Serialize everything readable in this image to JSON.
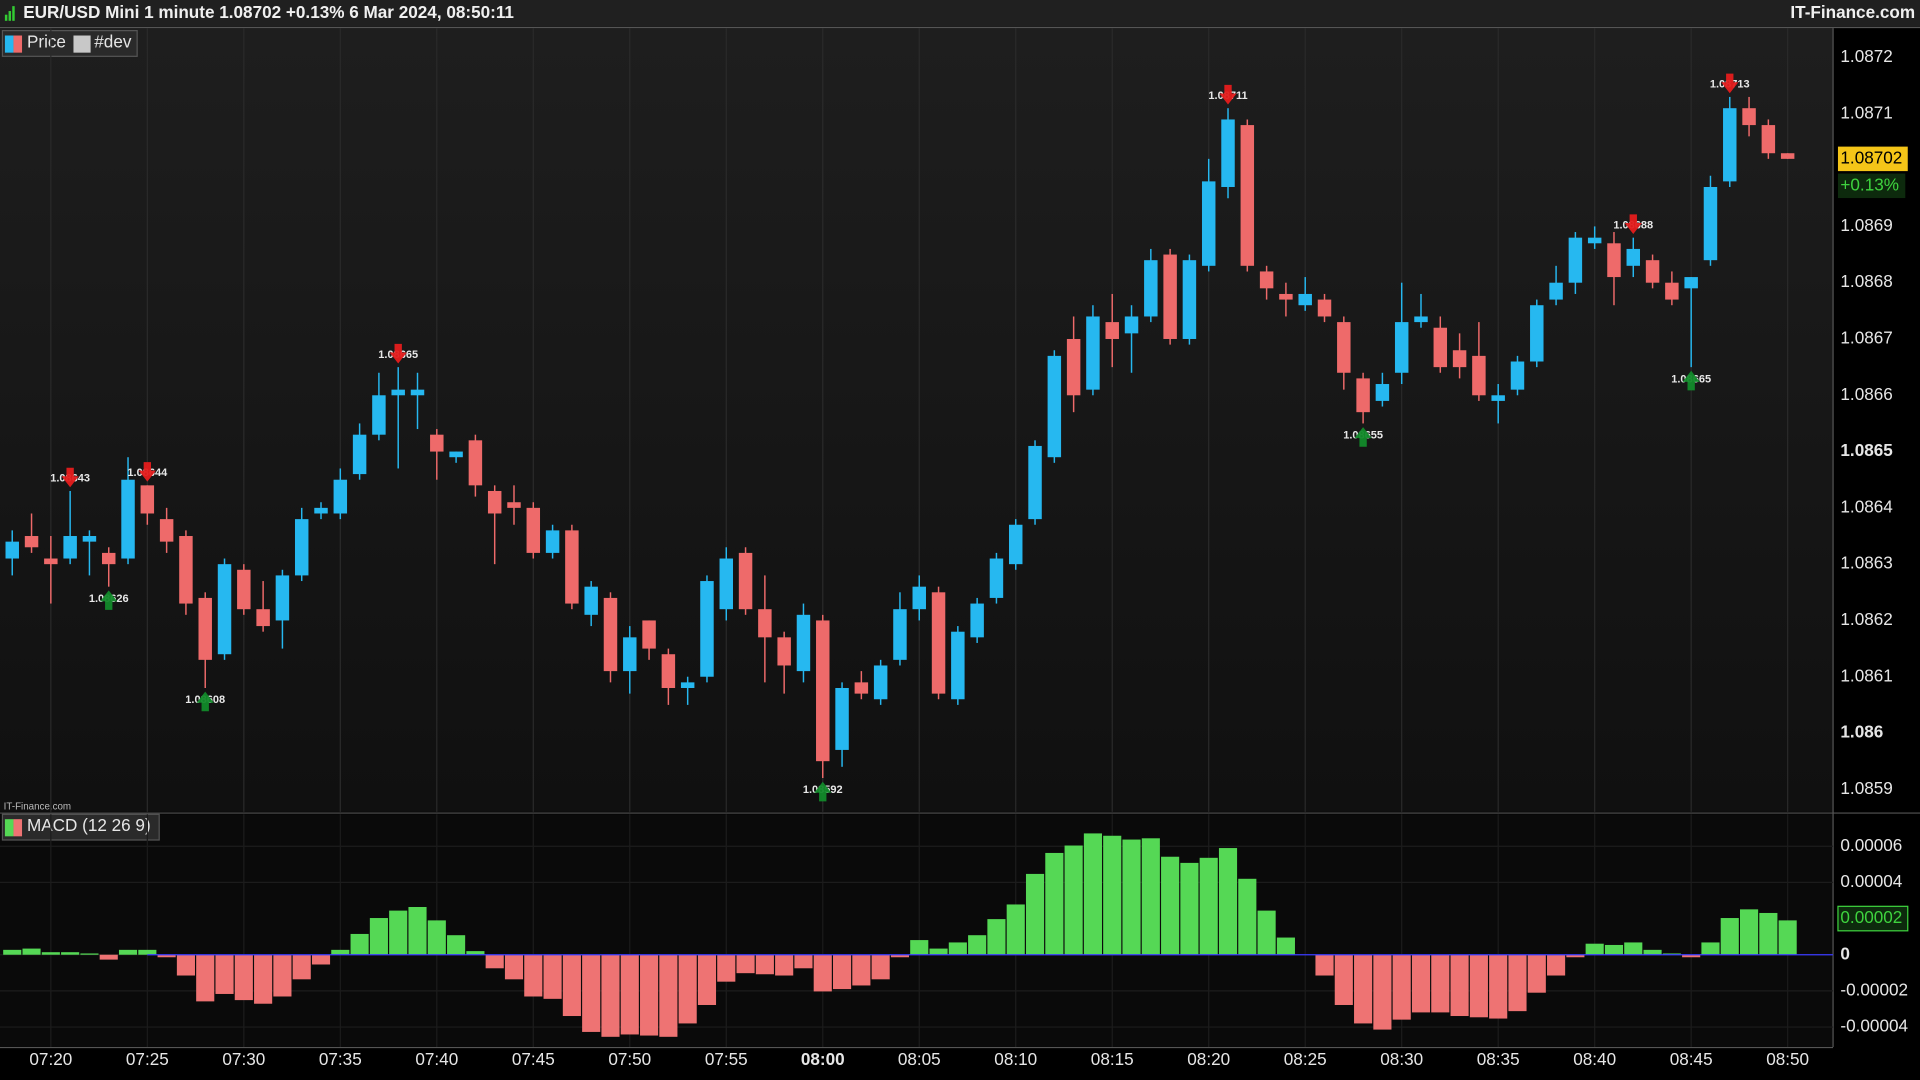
{
  "header": {
    "title": "EUR/USD Mini 1 minute 1.08702 +0.13% 6 Mar 2024, 08:50:11",
    "brand": "IT-Finance.com"
  },
  "chart_data": [
    {
      "type": "candlestick",
      "ylim": [
        1.08586,
        1.08725
      ],
      "yticks": [
        1.0859,
        1.086,
        1.0861,
        1.0862,
        1.0863,
        1.0864,
        1.0865,
        1.0866,
        1.0867,
        1.0868,
        1.0869,
        1.0871,
        1.0872
      ],
      "grid": true,
      "series": [
        {
          "name": "Price",
          "up_color": "#26b8f0",
          "down_color": "#ee6a6a",
          "open": [
            1.08631,
            1.08635,
            1.08631,
            1.08631,
            1.08634,
            1.08632,
            1.08631,
            1.08644,
            1.08638,
            1.08635,
            1.08624,
            1.08614,
            1.08629,
            1.08622,
            1.0862,
            1.08628,
            1.08639,
            1.08639,
            1.08646,
            1.08653,
            1.0866,
            1.0866,
            1.08653,
            1.08649,
            1.08652,
            1.08643,
            1.08641,
            1.0864,
            1.08632,
            1.08636,
            1.08621,
            1.08624,
            1.08611,
            1.0862,
            1.08614,
            1.08608,
            1.0861,
            1.08622,
            1.08632,
            1.08622,
            1.08617,
            1.08611,
            1.0862,
            1.08597,
            1.08609,
            1.08606,
            1.08613,
            1.08622,
            1.08625,
            1.08606,
            1.08617,
            1.08624,
            1.0863,
            1.08638,
            1.08649,
            1.0867,
            1.08661,
            1.08673,
            1.08671,
            1.08674,
            1.08685,
            1.0867,
            1.08683,
            1.08697,
            1.08708,
            1.08682,
            1.08678,
            1.08676,
            1.08677,
            1.08673,
            1.08663,
            1.08659,
            1.08664,
            1.08673,
            1.08672,
            1.08668,
            1.08667,
            1.08659,
            1.08661,
            1.08666,
            1.08677,
            1.0868,
            1.08687,
            1.08687,
            1.08683,
            1.08684,
            1.0868,
            1.08679,
            1.08684,
            1.08698,
            1.08711,
            1.08708,
            1.08703
          ],
          "high": [
            1.08636,
            1.08639,
            1.08635,
            1.08643,
            1.08636,
            1.08633,
            1.08649,
            1.08644,
            1.0864,
            1.08636,
            1.08625,
            1.08631,
            1.0863,
            1.08627,
            1.08629,
            1.0864,
            1.08641,
            1.08647,
            1.08655,
            1.08664,
            1.08665,
            1.08664,
            1.08654,
            1.0865,
            1.08653,
            1.08644,
            1.08644,
            1.08641,
            1.08637,
            1.08637,
            1.08627,
            1.08625,
            1.08619,
            1.0862,
            1.08615,
            1.0861,
            1.08628,
            1.08633,
            1.08633,
            1.08628,
            1.08618,
            1.08623,
            1.08621,
            1.08609,
            1.08611,
            1.08613,
            1.08625,
            1.08628,
            1.08626,
            1.08619,
            1.08624,
            1.08632,
            1.08638,
            1.08652,
            1.08668,
            1.08674,
            1.08676,
            1.08678,
            1.08676,
            1.08686,
            1.08686,
            1.08685,
            1.08702,
            1.08711,
            1.08709,
            1.08683,
            1.0868,
            1.08681,
            1.08678,
            1.08674,
            1.08664,
            1.08664,
            1.0868,
            1.08678,
            1.08674,
            1.08671,
            1.08673,
            1.08662,
            1.08667,
            1.08677,
            1.08683,
            1.08689,
            1.0869,
            1.08689,
            1.08688,
            1.08685,
            1.08682,
            1.08681,
            1.08699,
            1.08713,
            1.08713,
            1.08709,
            1.08703
          ],
          "low": [
            1.08628,
            1.08632,
            1.08623,
            1.0863,
            1.08628,
            1.08626,
            1.0863,
            1.08637,
            1.08632,
            1.08621,
            1.08608,
            1.08613,
            1.08621,
            1.08618,
            1.08615,
            1.08627,
            1.08638,
            1.08638,
            1.08645,
            1.08652,
            1.08647,
            1.08654,
            1.08645,
            1.08648,
            1.08642,
            1.0863,
            1.08637,
            1.08631,
            1.08631,
            1.08622,
            1.08619,
            1.08609,
            1.08607,
            1.08613,
            1.08605,
            1.08605,
            1.08609,
            1.0862,
            1.08621,
            1.08609,
            1.08607,
            1.08609,
            1.08592,
            1.08594,
            1.08606,
            1.08605,
            1.08612,
            1.0862,
            1.08606,
            1.08605,
            1.08616,
            1.08623,
            1.08629,
            1.08637,
            1.08648,
            1.08657,
            1.0866,
            1.08665,
            1.08664,
            1.08673,
            1.08669,
            1.08669,
            1.08682,
            1.08695,
            1.08682,
            1.08677,
            1.08674,
            1.08675,
            1.08673,
            1.08661,
            1.08655,
            1.08658,
            1.08662,
            1.08672,
            1.08664,
            1.08663,
            1.08659,
            1.08655,
            1.0866,
            1.08665,
            1.08676,
            1.08678,
            1.08686,
            1.08676,
            1.08681,
            1.08679,
            1.08676,
            1.08665,
            1.08683,
            1.08697,
            1.08706,
            1.08702,
            1.08702
          ],
          "close": [
            1.08634,
            1.08633,
            1.0863,
            1.08635,
            1.08635,
            1.0863,
            1.08645,
            1.08639,
            1.08634,
            1.08623,
            1.08613,
            1.0863,
            1.08622,
            1.08619,
            1.08628,
            1.08638,
            1.0864,
            1.08645,
            1.08653,
            1.0866,
            1.08661,
            1.08661,
            1.0865,
            1.0865,
            1.08644,
            1.08639,
            1.0864,
            1.08632,
            1.08636,
            1.08623,
            1.08626,
            1.08611,
            1.08617,
            1.08615,
            1.08608,
            1.08609,
            1.08627,
            1.08631,
            1.08622,
            1.08617,
            1.08612,
            1.08621,
            1.08595,
            1.08608,
            1.08607,
            1.08612,
            1.08622,
            1.08626,
            1.08607,
            1.08618,
            1.08623,
            1.08631,
            1.08637,
            1.08651,
            1.08667,
            1.0866,
            1.08674,
            1.0867,
            1.08674,
            1.08684,
            1.0867,
            1.08684,
            1.08698,
            1.08709,
            1.08683,
            1.08679,
            1.08677,
            1.08678,
            1.08674,
            1.08664,
            1.08657,
            1.08662,
            1.08673,
            1.08674,
            1.08665,
            1.08665,
            1.0866,
            1.0866,
            1.08666,
            1.08676,
            1.0868,
            1.08688,
            1.08688,
            1.08681,
            1.08686,
            1.0868,
            1.08677,
            1.08681,
            1.08697,
            1.08711,
            1.08708,
            1.08703,
            1.08702
          ]
        }
      ],
      "indicators": [
        {
          "name": "#dev",
          "color": "#c8c8c8"
        }
      ],
      "annotations": [
        {
          "index": 3,
          "value": 1.08643,
          "kind": "high"
        },
        {
          "index": 5,
          "value": 1.08626,
          "kind": "low"
        },
        {
          "index": 7,
          "value": 1.08644,
          "kind": "high"
        },
        {
          "index": 10,
          "value": 1.08608,
          "kind": "low"
        },
        {
          "index": 20,
          "value": 1.08665,
          "kind": "high"
        },
        {
          "index": 42,
          "value": 1.08592,
          "kind": "low"
        },
        {
          "index": 63,
          "value": 1.08711,
          "kind": "high"
        },
        {
          "index": 70,
          "value": 1.08655,
          "kind": "low"
        },
        {
          "index": 84,
          "value": 1.08688,
          "kind": "high"
        },
        {
          "index": 87,
          "value": 1.08665,
          "kind": "low"
        },
        {
          "index": 89,
          "value": 1.08713,
          "kind": "high"
        }
      ],
      "last": {
        "value": 1.08702,
        "change": "+0.13%"
      }
    },
    {
      "type": "bar",
      "ylim": [
        -5.1e-05,
        7.7e-05
      ],
      "yticks": [
        6e-05,
        4e-05,
        0,
        -2e-05,
        -4e-05
      ],
      "categories": [
        null,
        null,
        "07:20",
        null,
        null,
        null,
        null,
        "07:25",
        null,
        null,
        null,
        null,
        "07:30",
        null,
        null,
        null,
        null,
        "07:35",
        null,
        null,
        null,
        null,
        "07:40",
        null,
        null,
        null,
        null,
        "07:45",
        null,
        null,
        null,
        null,
        "07:50",
        null,
        null,
        null,
        null,
        "07:55",
        null,
        null,
        null,
        null,
        "08:00",
        null,
        null,
        null,
        null,
        "08:05",
        null,
        null,
        null,
        null,
        "08:10",
        null,
        null,
        null,
        null,
        "08:15",
        null,
        null,
        null,
        null,
        "08:20",
        null,
        null,
        null,
        null,
        "08:25",
        null,
        null,
        null,
        null,
        "08:30",
        null,
        null,
        null,
        null,
        "08:35",
        null,
        null,
        null,
        null,
        "08:40",
        null,
        null,
        null,
        null,
        "08:45",
        null,
        null,
        null,
        null,
        "08:50"
      ],
      "series": [
        {
          "name": "MACD (12 26 9)",
          "up_color": "#55d855",
          "down_color": "#ee7373",
          "values": [
            2.7e-06,
            3.4e-06,
            1.4e-06,
            1.4e-06,
            7e-07,
            -2.7e-06,
            2.7e-06,
            2.7e-06,
            -1.4e-06,
            -1.15e-05,
            -2.58e-05,
            -2.17e-05,
            -2.51e-05,
            -2.71e-05,
            -2.31e-05,
            -1.36e-05,
            -5.4e-06,
            2.7e-06,
            1.15e-05,
            2.03e-05,
            2.44e-05,
            2.64e-05,
            1.9e-05,
            1.08e-05,
            2e-06,
            -7.5e-06,
            -1.36e-05,
            -2.31e-05,
            -2.44e-05,
            -3.39e-05,
            -4.27e-05,
            -4.54e-05,
            -4.41e-05,
            -4.47e-05,
            -4.54e-05,
            -3.8e-05,
            -2.78e-05,
            -1.49e-05,
            -1.02e-05,
            -1.08e-05,
            -1.15e-05,
            -7.5e-06,
            -2.03e-05,
            -1.9e-05,
            -1.7e-05,
            -1.36e-05,
            -1.4e-06,
            8.1e-06,
            3.4e-06,
            6.8e-06,
            1.08e-05,
            1.97e-05,
            2.78e-05,
            4.47e-05,
            5.63e-05,
            6.04e-05,
            6.71e-05,
            6.58e-05,
            6.37e-05,
            6.44e-05,
            5.42e-05,
            5.08e-05,
            5.36e-05,
            5.9e-05,
            4.2e-05,
            2.44e-05,
            9.5e-06,
            0,
            -1.15e-05,
            -2.78e-05,
            -3.8e-05,
            -4.14e-05,
            -3.59e-05,
            -3.19e-05,
            -3.19e-05,
            -3.39e-05,
            -3.46e-05,
            -3.53e-05,
            -3.12e-05,
            -2.1e-05,
            -1.15e-05,
            -1.4e-06,
            6.1e-06,
            5.4e-06,
            6.8e-06,
            2.7e-06,
            7e-07,
            -1.4e-06,
            6.8e-06,
            2.03e-05,
            2.51e-05,
            2.31e-05,
            1.9e-05
          ]
        }
      ],
      "current": {
        "value": 2e-05
      }
    }
  ]
}
